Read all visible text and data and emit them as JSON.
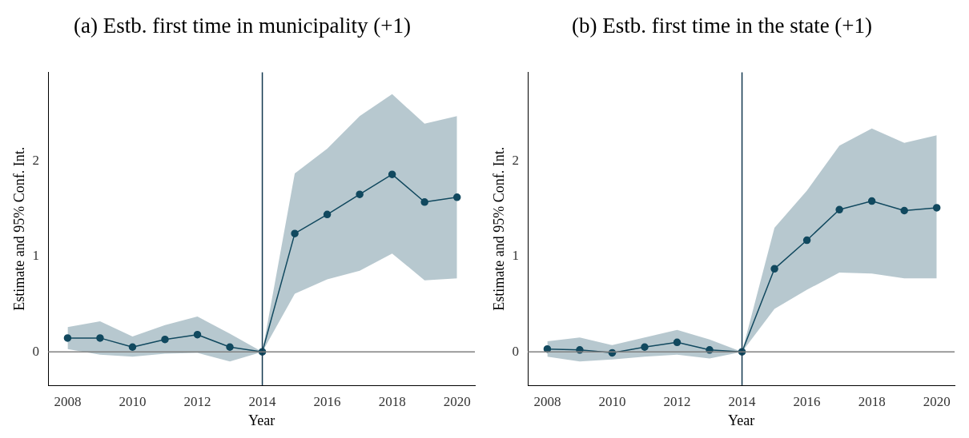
{
  "chart_data": [
    {
      "type": "line",
      "title": "(a) Estb. first time in municipality (+1)",
      "xlabel": "Year",
      "ylabel": "Estimate and 95% Conf. Int.",
      "x": [
        2008,
        2009,
        2010,
        2011,
        2012,
        2013,
        2014,
        2015,
        2016,
        2017,
        2018,
        2019,
        2020
      ],
      "series": [
        {
          "color": "#12495f",
          "values": [
            0.145,
            0.145,
            0.05,
            0.13,
            0.18,
            0.05,
            0,
            1.24,
            1.44,
            1.65,
            1.86,
            1.57,
            1.62
          ],
          "lower": [
            0.03,
            -0.03,
            -0.05,
            -0.02,
            -0.01,
            -0.1,
            0,
            0.61,
            0.76,
            0.85,
            1.03,
            0.75,
            0.77
          ],
          "upper": [
            0.26,
            0.32,
            0.16,
            0.28,
            0.37,
            0.19,
            0,
            1.87,
            2.13,
            2.47,
            2.7,
            2.39,
            2.47
          ]
        }
      ],
      "xlim": [
        2007.4,
        2020.55
      ],
      "xticks": [
        2008,
        2010,
        2012,
        2014,
        2016,
        2018,
        2020
      ],
      "ylim": [
        -0.35,
        2.93
      ],
      "yticks": [
        0,
        1,
        2
      ],
      "grid": false,
      "legend": false,
      "marker": "circle",
      "line_style": "solid",
      "ref_lines": [
        {
          "axis": "x",
          "value": 2014,
          "color": "#12384f"
        },
        {
          "axis": "y",
          "value": 0,
          "color": "#808080"
        }
      ]
    },
    {
      "type": "line",
      "title": "(b) Estb. first time in the state (+1)",
      "xlabel": "Year",
      "ylabel": "Estimate and 95% Conf. Int.",
      "x": [
        2008,
        2009,
        2010,
        2011,
        2012,
        2013,
        2014,
        2015,
        2016,
        2017,
        2018,
        2019,
        2020
      ],
      "series": [
        {
          "color": "#12495f",
          "values": [
            0.03,
            0.02,
            -0.01,
            0.05,
            0.1,
            0.02,
            0,
            0.87,
            1.17,
            1.49,
            1.58,
            1.48,
            1.51
          ],
          "lower": [
            -0.05,
            -0.1,
            -0.08,
            -0.05,
            -0.03,
            -0.07,
            0,
            0.45,
            0.65,
            0.83,
            0.82,
            0.77,
            0.77
          ],
          "upper": [
            0.11,
            0.15,
            0.07,
            0.15,
            0.23,
            0.13,
            0,
            1.3,
            1.69,
            2.16,
            2.34,
            2.19,
            2.27
          ]
        }
      ],
      "xlim": [
        2007.4,
        2020.55
      ],
      "xticks": [
        2008,
        2010,
        2012,
        2014,
        2016,
        2018,
        2020
      ],
      "ylim": [
        -0.35,
        2.93
      ],
      "yticks": [
        0,
        1,
        2
      ],
      "grid": false,
      "legend": false,
      "marker": "circle",
      "line_style": "solid",
      "ref_lines": [
        {
          "axis": "x",
          "value": 2014,
          "color": "#12384f"
        },
        {
          "axis": "y",
          "value": 0,
          "color": "#808080"
        }
      ]
    }
  ]
}
